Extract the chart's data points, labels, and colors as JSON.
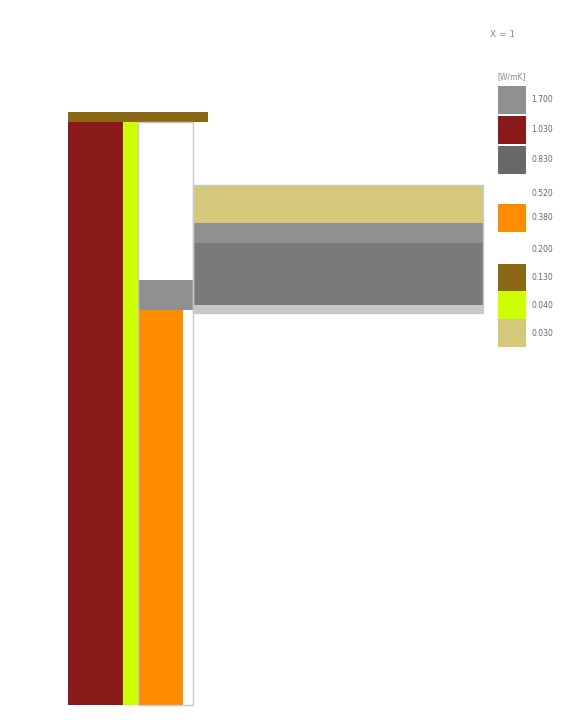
{
  "bg_color": "#FFFFFF",
  "title_text": "X = 1",
  "legend_label": "[W/mK]",
  "legend_colors": [
    "#909090",
    "#8B1A1A",
    "#696969",
    "#FF8C00",
    "#8B6914",
    "#CCFF00",
    "#D4C87A"
  ],
  "legend_values_with_box": [
    "1.700",
    "1.030",
    "0.830",
    "0.380",
    "0.130",
    "0.040",
    "0.030"
  ],
  "legend_values_no_box": [
    "0.520",
    "0.200"
  ],
  "wall_dark_red_color": "#8B1A1A",
  "wall_lime_color": "#CCFF00",
  "wall_brown_color": "#8B6914",
  "wall_orange_color": "#FF8C00",
  "floor_yellow_color": "#D4C87A",
  "floor_gray_color": "#7A7A7A",
  "floor_light_gray_color": "#C8C8C8",
  "border_color": "#C8C8C8"
}
